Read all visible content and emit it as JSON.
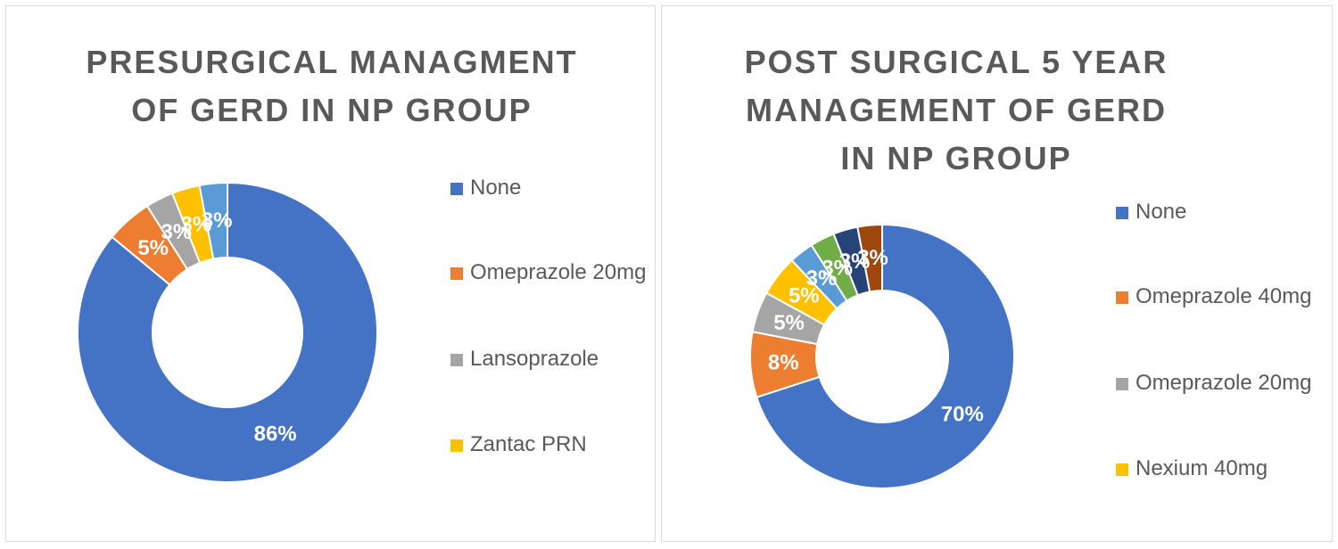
{
  "chart_data": [
    {
      "type": "pie",
      "variant": "donut",
      "title": "PRESURGICAL MANAGMENT OF GERD IN NP GROUP",
      "legend_position": "right",
      "slices": [
        {
          "label": "None",
          "value": 86,
          "data_label": "86%",
          "color": "#4472c4"
        },
        {
          "label": "Omeprazole 20mg",
          "value": 5,
          "data_label": "5%",
          "color": "#ed7d31"
        },
        {
          "label": "Lansoprazole",
          "value": 3,
          "data_label": "3%",
          "color": "#a5a5a5"
        },
        {
          "label": "Zantac PRN",
          "value": 3,
          "data_label": "3%",
          "color": "#ffc000"
        },
        {
          "label": "",
          "value": 3,
          "data_label": "3%",
          "color": "#5b9bd5"
        }
      ]
    },
    {
      "type": "pie",
      "variant": "donut",
      "title": "POST SURGICAL 5 YEAR MANAGEMENT OF GERD IN NP GROUP",
      "legend_position": "right",
      "slices": [
        {
          "label": "None",
          "value": 70,
          "data_label": "70%",
          "color": "#4472c4"
        },
        {
          "label": "Omeprazole 40mg",
          "value": 8,
          "data_label": "8%",
          "color": "#ed7d31"
        },
        {
          "label": "Omeprazole 20mg",
          "value": 5,
          "data_label": "5%",
          "color": "#a5a5a5"
        },
        {
          "label": "Nexium 40mg",
          "value": 5,
          "data_label": "5%",
          "color": "#ffc000"
        },
        {
          "label": "",
          "value": 3,
          "data_label": "3%",
          "color": "#5b9bd5"
        },
        {
          "label": "",
          "value": 3,
          "data_label": "3%",
          "color": "#70ad47"
        },
        {
          "label": "",
          "value": 3,
          "data_label": "3%",
          "color": "#264478"
        },
        {
          "label": "",
          "value": 3,
          "data_label": "3%",
          "color": "#9e480e"
        }
      ]
    }
  ]
}
